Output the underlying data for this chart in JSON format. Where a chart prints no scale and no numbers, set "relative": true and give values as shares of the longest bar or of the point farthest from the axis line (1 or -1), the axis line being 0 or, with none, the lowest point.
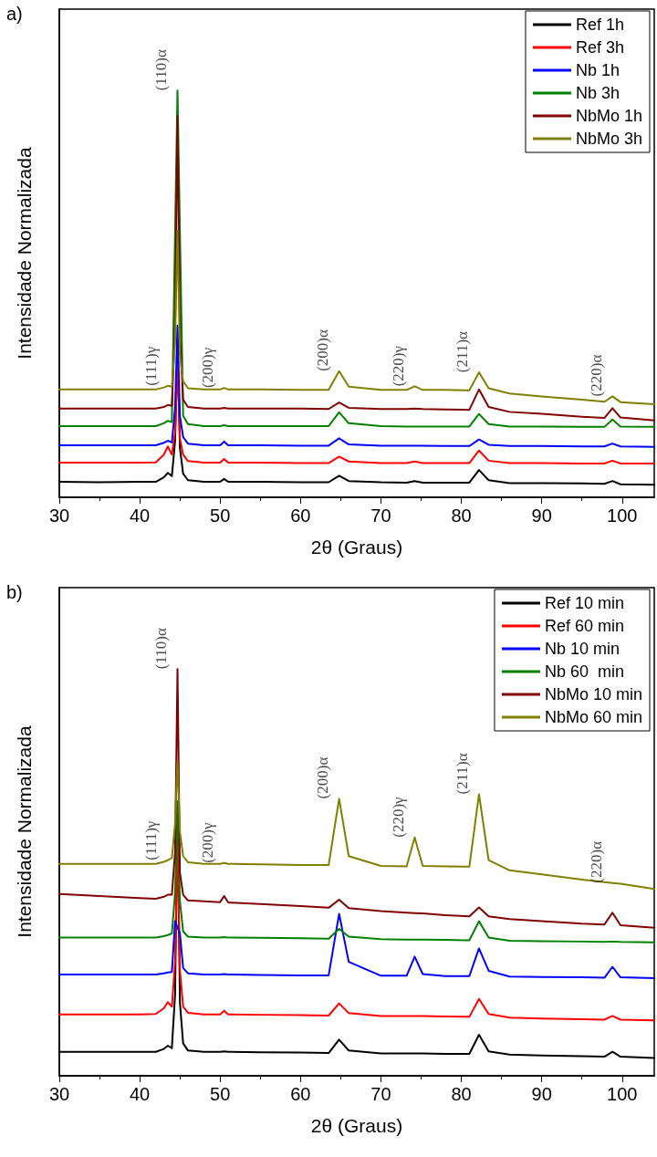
{
  "chart_data": [
    {
      "type": "line",
      "title": "a)",
      "xlabel": "2θ (Graus)",
      "ylabel": "Intensidade Normalizada",
      "relative": true,
      "legend": "top right",
      "marker": "none",
      "line_style": "solid",
      "grid": false,
      "xlim": [
        30,
        104
      ],
      "xticks": [
        30,
        40,
        50,
        60,
        70,
        80,
        90,
        100
      ],
      "x": [
        30,
        35,
        40,
        42,
        43,
        43.5,
        44,
        44.4,
        44.7,
        45,
        45.4,
        46,
        48,
        50,
        50.5,
        51,
        55,
        60,
        63.5,
        64.8,
        66,
        70,
        73.2,
        74.2,
        75.2,
        78,
        81,
        82.2,
        83.4,
        86,
        90,
        95,
        97.8,
        98.8,
        99.8,
        104
      ],
      "series": [
        {
          "name": "Ref 1h",
          "color": "#000000",
          "values": [
            0.038,
            0.037,
            0.038,
            0.038,
            0.049,
            0.06,
            0.052,
            0.138,
            0.371,
            0.121,
            0.058,
            0.042,
            0.038,
            0.038,
            0.045,
            0.038,
            0.038,
            0.037,
            0.037,
            0.053,
            0.04,
            0.037,
            0.036,
            0.04,
            0.036,
            0.036,
            0.036,
            0.067,
            0.042,
            0.035,
            0.035,
            0.034,
            0.033,
            0.04,
            0.032,
            0.031
          ]
        },
        {
          "name": "Ref 3h",
          "color": "#ff0000",
          "values": [
            0.085,
            0.085,
            0.085,
            0.086,
            0.105,
            0.125,
            0.105,
            0.16,
            0.326,
            0.145,
            0.105,
            0.089,
            0.085,
            0.085,
            0.094,
            0.085,
            0.085,
            0.084,
            0.084,
            0.1,
            0.088,
            0.084,
            0.084,
            0.088,
            0.084,
            0.084,
            0.084,
            0.115,
            0.09,
            0.084,
            0.084,
            0.083,
            0.083,
            0.09,
            0.083,
            0.083
          ]
        },
        {
          "name": "Nb 1h",
          "color": "#0000ff",
          "values": [
            0.128,
            0.128,
            0.128,
            0.128,
            0.134,
            0.139,
            0.135,
            0.22,
            0.422,
            0.2,
            0.148,
            0.132,
            0.128,
            0.128,
            0.137,
            0.128,
            0.128,
            0.127,
            0.127,
            0.145,
            0.13,
            0.127,
            0.127,
            0.127,
            0.127,
            0.126,
            0.126,
            0.142,
            0.129,
            0.126,
            0.126,
            0.125,
            0.125,
            0.132,
            0.125,
            0.124
          ]
        },
        {
          "name": "Nb 3h",
          "color": "#008000",
          "values": [
            0.175,
            0.175,
            0.175,
            0.175,
            0.182,
            0.188,
            0.185,
            null,
            1.0,
            null,
            0.2,
            0.18,
            0.175,
            0.175,
            0.177,
            0.175,
            0.175,
            0.175,
            0.175,
            0.209,
            0.182,
            0.175,
            0.174,
            0.174,
            0.174,
            0.174,
            0.174,
            0.205,
            0.18,
            0.174,
            0.174,
            0.173,
            0.173,
            0.191,
            0.174,
            0.173
          ]
        },
        {
          "name": "NbMo 1h",
          "color": "#800000",
          "values": [
            0.218,
            0.218,
            0.218,
            0.218,
            0.222,
            0.227,
            0.225,
            0.42,
            0.937,
            0.4,
            0.24,
            0.222,
            0.218,
            0.218,
            0.22,
            0.218,
            0.218,
            0.218,
            0.217,
            0.233,
            0.22,
            0.217,
            0.217,
            0.218,
            0.217,
            0.216,
            0.215,
            0.265,
            0.222,
            0.21,
            0.205,
            0.198,
            0.195,
            0.219,
            0.196,
            0.189
          ]
        },
        {
          "name": "NbMo 3h",
          "color": "#808000",
          "values": [
            0.265,
            0.265,
            0.265,
            0.265,
            0.27,
            0.274,
            0.272,
            0.38,
            0.656,
            0.35,
            0.285,
            0.268,
            0.265,
            0.265,
            0.269,
            0.265,
            0.265,
            0.264,
            0.264,
            0.31,
            0.272,
            0.264,
            0.264,
            0.273,
            0.264,
            0.264,
            0.263,
            0.307,
            0.268,
            0.255,
            0.248,
            0.24,
            0.235,
            0.248,
            0.234,
            0.229
          ]
        }
      ],
      "annotations": [
        {
          "text": "(111)γ",
          "x": 43.5,
          "y": 0.274
        },
        {
          "text": "(110)α",
          "x": 44.7,
          "y": 1.0
        },
        {
          "text": "(200)γ",
          "x": 50.5,
          "y": 0.269
        },
        {
          "text": "(200)α",
          "x": 64.8,
          "y": 0.31
        },
        {
          "text": "(220)γ",
          "x": 74.2,
          "y": 0.273
        },
        {
          "text": "(211)α",
          "x": 82.2,
          "y": 0.307
        },
        {
          "text": "(220)α",
          "x": 98.8,
          "y": 0.248
        }
      ]
    },
    {
      "type": "line",
      "title": "b)",
      "xlabel": "2θ (Graus)",
      "ylabel": "Intensidade Normalizada",
      "relative": true,
      "legend": "top right",
      "marker": "none",
      "line_style": "solid",
      "grid": false,
      "xlim": [
        30,
        104
      ],
      "xticks": [
        30,
        40,
        50,
        60,
        70,
        80,
        90,
        100
      ],
      "x": [
        30,
        35,
        40,
        42,
        43,
        43.5,
        44,
        44.4,
        44.7,
        45,
        45.4,
        46,
        48,
        50,
        50.5,
        51,
        55,
        60,
        63.5,
        64.8,
        66,
        70,
        73.2,
        74.2,
        75.2,
        78,
        81,
        82.2,
        83.4,
        86,
        90,
        95,
        97.8,
        98.8,
        99.8,
        104
      ],
      "series": [
        {
          "name": "Ref 10 min",
          "color": "#000000",
          "values": [
            0.059,
            0.059,
            0.059,
            0.059,
            0.066,
            0.074,
            0.068,
            0.2,
            0.645,
            0.18,
            0.08,
            0.062,
            0.059,
            0.059,
            0.06,
            0.059,
            0.058,
            0.057,
            0.056,
            0.089,
            0.062,
            0.055,
            0.055,
            0.055,
            0.055,
            0.054,
            0.054,
            0.101,
            0.06,
            0.052,
            0.05,
            0.048,
            0.047,
            0.059,
            0.047,
            0.044
          ]
        },
        {
          "name": "Ref 60 min",
          "color": "#ff0000",
          "values": [
            0.151,
            0.151,
            0.151,
            0.152,
            0.166,
            0.181,
            0.17,
            0.28,
            0.601,
            0.26,
            0.17,
            0.155,
            0.151,
            0.151,
            0.16,
            0.151,
            0.15,
            0.149,
            0.148,
            0.178,
            0.154,
            0.147,
            0.147,
            0.147,
            0.147,
            0.146,
            0.145,
            0.189,
            0.152,
            0.143,
            0.141,
            0.139,
            0.138,
            0.147,
            0.138,
            0.136
          ]
        },
        {
          "name": "Nb 10 min",
          "color": "#0000ff",
          "values": [
            0.249,
            0.249,
            0.249,
            0.249,
            0.252,
            0.254,
            0.255,
            0.38,
            null,
            0.35,
            0.265,
            0.252,
            0.249,
            0.249,
            0.25,
            0.249,
            0.248,
            0.247,
            0.247,
            0.398,
            0.28,
            0.246,
            0.246,
            0.293,
            0.25,
            0.245,
            0.245,
            0.313,
            0.258,
            0.244,
            0.243,
            0.242,
            0.241,
            0.268,
            0.242,
            0.24
          ]
        },
        {
          "name": "Nb 60  min",
          "color": "#008000",
          "values": [
            0.34,
            0.34,
            0.34,
            0.34,
            0.343,
            0.346,
            0.35,
            0.45,
            0.675,
            0.43,
            0.355,
            0.342,
            0.34,
            0.34,
            0.341,
            0.34,
            0.339,
            0.338,
            0.337,
            0.361,
            0.342,
            0.336,
            0.335,
            0.335,
            0.335,
            0.334,
            0.333,
            0.38,
            0.34,
            0.332,
            0.331,
            0.33,
            0.329,
            0.33,
            0.329,
            0.328
          ]
        },
        {
          "name": "NbMo 10 min",
          "color": "#800000",
          "values": [
            0.447,
            0.442,
            0.437,
            0.435,
            0.44,
            0.445,
            0.445,
            0.55,
            1.0,
            0.5,
            0.445,
            0.431,
            0.429,
            0.427,
            0.442,
            0.426,
            0.422,
            0.417,
            0.413,
            0.433,
            0.412,
            0.405,
            0.401,
            0.4,
            0.399,
            0.395,
            0.392,
            0.414,
            0.392,
            0.385,
            0.38,
            0.374,
            0.372,
            0.401,
            0.37,
            0.364
          ]
        },
        {
          "name": "NbMo 60 min",
          "color": "#808000",
          "values": [
            0.521,
            0.521,
            0.521,
            0.521,
            0.526,
            0.53,
            0.535,
            0.62,
            0.775,
            0.6,
            0.54,
            0.525,
            0.521,
            0.521,
            0.523,
            0.521,
            0.52,
            0.518,
            0.518,
            0.681,
            0.54,
            0.516,
            0.515,
            0.586,
            0.516,
            0.515,
            0.514,
            0.692,
            0.53,
            0.505,
            0.495,
            0.482,
            0.476,
            0.474,
            0.472,
            0.459
          ]
        }
      ],
      "annotations": [
        {
          "text": "(111)γ",
          "x": 43.5,
          "y": 0.53
        },
        {
          "text": "(110)α",
          "x": 44.7,
          "y": 1.0
        },
        {
          "text": "(200)γ",
          "x": 50.5,
          "y": 0.523
        },
        {
          "text": "(200)α",
          "x": 64.8,
          "y": 0.681
        },
        {
          "text": "(220)γ",
          "x": 74.2,
          "y": 0.586
        },
        {
          "text": "(211)α",
          "x": 82.2,
          "y": 0.692
        },
        {
          "text": "(220)α",
          "x": 98.8,
          "y": 0.474
        }
      ]
    }
  ]
}
